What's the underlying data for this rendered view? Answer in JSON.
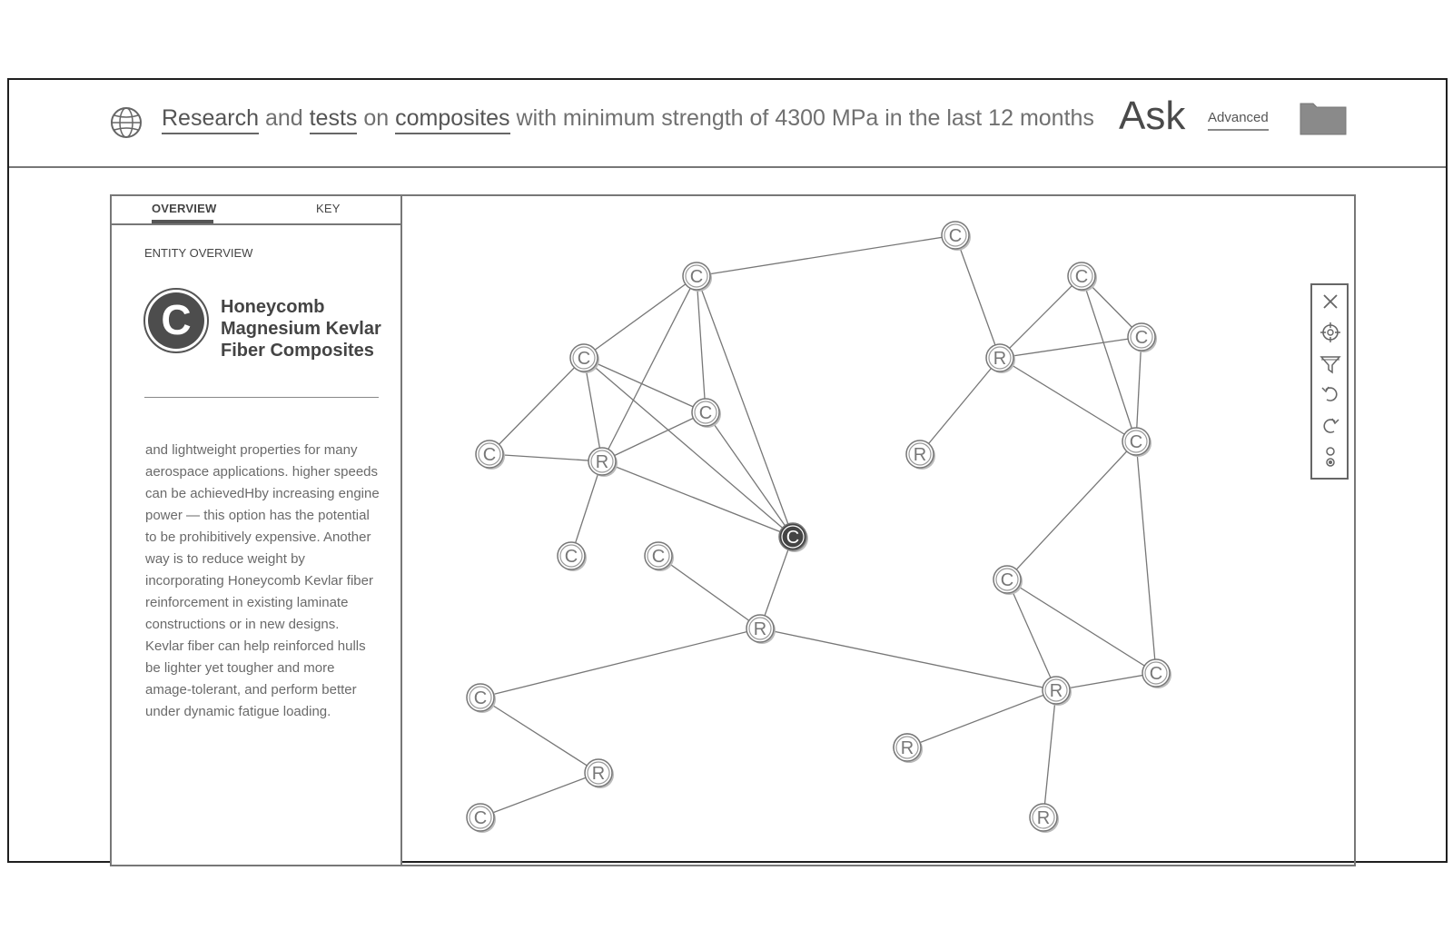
{
  "search": {
    "query_parts": [
      {
        "text": "Research",
        "keyword": true
      },
      {
        "text": " and ",
        "keyword": false
      },
      {
        "text": "tests",
        "keyword": true
      },
      {
        "text": " on ",
        "keyword": false
      },
      {
        "text": "composites",
        "keyword": true
      },
      {
        "text": " with minimum strength of 4300 MPa in the last 12 months",
        "keyword": false
      }
    ],
    "ask_label": "Ask",
    "advanced_label": "Advanced",
    "globe_icon": "globe-icon",
    "folder_icon": "folder-icon"
  },
  "sidebar": {
    "tabs": [
      {
        "label": "OVERVIEW",
        "active": true
      },
      {
        "label": "KEY",
        "active": false
      }
    ],
    "section_label": "ENTITY OVERVIEW",
    "entity": {
      "icon_letter": "C",
      "title": "Honeycomb Magnesium Kevlar Fiber Composites",
      "description": "and lightweight properties for many aerospace applications. higher speeds can be achievedHby increasing engine power — this option has the potential to be prohibitively expensive. Another way is to reduce weight by incorporating Honeycomb Kevlar fiber reinforcement in existing laminate constructions or in new designs. Kevlar fiber can help reinforced hulls be lighter yet tougher and more amage-tolerant, and perform better under dynamic fatigue loading."
    }
  },
  "graph": {
    "nodes": [
      {
        "id": "n1",
        "label": "C"
      },
      {
        "id": "n2",
        "label": "C"
      },
      {
        "id": "n3",
        "label": "C"
      },
      {
        "id": "n4",
        "label": "C"
      },
      {
        "id": "n5",
        "label": "C"
      },
      {
        "id": "n6",
        "label": "R"
      },
      {
        "id": "n7",
        "label": "C"
      },
      {
        "id": "n8",
        "label": "C"
      },
      {
        "id": "n9",
        "label": "C",
        "selected": true
      },
      {
        "id": "n10",
        "label": "R"
      },
      {
        "id": "n11",
        "label": "C"
      },
      {
        "id": "n12",
        "label": "R"
      },
      {
        "id": "n13",
        "label": "C"
      },
      {
        "id": "n14",
        "label": "C"
      },
      {
        "id": "n15",
        "label": "R"
      },
      {
        "id": "n16",
        "label": "C"
      },
      {
        "id": "n17",
        "label": "R"
      },
      {
        "id": "n18",
        "label": "C"
      },
      {
        "id": "n19",
        "label": "C"
      },
      {
        "id": "n20",
        "label": "C"
      },
      {
        "id": "n21",
        "label": "R"
      },
      {
        "id": "n22",
        "label": "C"
      },
      {
        "id": "n23",
        "label": "R"
      },
      {
        "id": "n24",
        "label": "R"
      }
    ],
    "edges": [
      [
        "n1",
        "n2"
      ],
      [
        "n2",
        "n3"
      ],
      [
        "n2",
        "n4"
      ],
      [
        "n2",
        "n6"
      ],
      [
        "n2",
        "n9"
      ],
      [
        "n3",
        "n4"
      ],
      [
        "n3",
        "n5"
      ],
      [
        "n3",
        "n6"
      ],
      [
        "n3",
        "n9"
      ],
      [
        "n4",
        "n6"
      ],
      [
        "n4",
        "n9"
      ],
      [
        "n5",
        "n6"
      ],
      [
        "n6",
        "n7"
      ],
      [
        "n6",
        "n9"
      ],
      [
        "n9",
        "n10"
      ],
      [
        "n8",
        "n10"
      ],
      [
        "n10",
        "n11"
      ],
      [
        "n10",
        "n21"
      ],
      [
        "n11",
        "n12"
      ],
      [
        "n12",
        "n13"
      ],
      [
        "n1",
        "n15"
      ],
      [
        "n14",
        "n15"
      ],
      [
        "n14",
        "n16"
      ],
      [
        "n14",
        "n18"
      ],
      [
        "n15",
        "n16"
      ],
      [
        "n15",
        "n17"
      ],
      [
        "n15",
        "n18"
      ],
      [
        "n16",
        "n18"
      ],
      [
        "n18",
        "n19"
      ],
      [
        "n18",
        "n20"
      ],
      [
        "n19",
        "n20"
      ],
      [
        "n19",
        "n21"
      ],
      [
        "n20",
        "n21"
      ],
      [
        "n21",
        "n23"
      ],
      [
        "n21",
        "n24"
      ]
    ]
  },
  "toolbar": {
    "tools": [
      {
        "icon": "close-icon"
      },
      {
        "icon": "crosshair-icon"
      },
      {
        "icon": "filter-icon"
      },
      {
        "icon": "undo-icon"
      },
      {
        "icon": "redo-icon"
      },
      {
        "icon": "layout-toggle-icon"
      }
    ]
  },
  "colors": {
    "line": "#777777",
    "node_fill": "#ffffff",
    "node_selected": "#444444",
    "text": "#555555"
  }
}
